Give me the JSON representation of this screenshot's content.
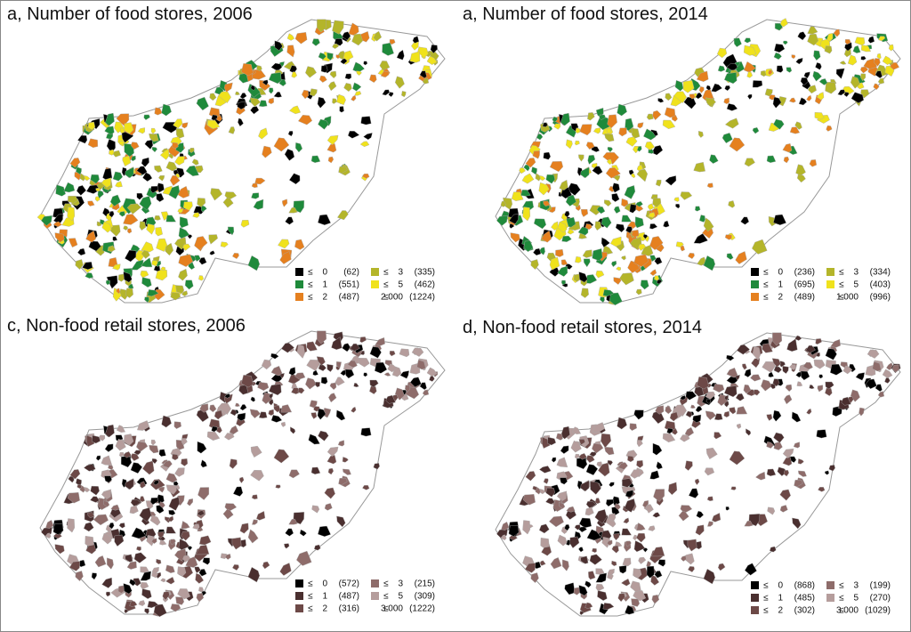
{
  "panels": [
    {
      "title": "a, Number of food stores, 2006",
      "legend": [
        {
          "symbol": "≤",
          "threshold": "0",
          "count": "(62)",
          "color": "#000000"
        },
        {
          "symbol": "≤",
          "threshold": "1",
          "count": "(551)",
          "color": "#1f8a3b"
        },
        {
          "symbol": "≤",
          "threshold": "2",
          "count": "(487)",
          "color": "#e5801f"
        },
        {
          "symbol": "≤",
          "threshold": "3",
          "count": "(335)",
          "color": "#b4b52a"
        },
        {
          "symbol": "≤",
          "threshold": "5",
          "count": "(462)",
          "color": "#f0e21c"
        },
        {
          "symbol": "≤",
          "threshold": "2 000",
          "count": "(1224)"
        }
      ]
    },
    {
      "title": "a, Number of food stores, 2014",
      "legend": [
        {
          "symbol": "≤",
          "threshold": "0",
          "count": "(236)",
          "color": "#000000"
        },
        {
          "symbol": "≤",
          "threshold": "1",
          "count": "(695)",
          "color": "#1f8a3b"
        },
        {
          "symbol": "≤",
          "threshold": "2",
          "count": "(489)",
          "color": "#e5801f"
        },
        {
          "symbol": "≤",
          "threshold": "3",
          "count": "(334)",
          "color": "#b4b52a"
        },
        {
          "symbol": "≤",
          "threshold": "5",
          "count": "(403)",
          "color": "#f0e21c"
        },
        {
          "symbol": "≤",
          "threshold": "1 000",
          "count": "(996)"
        }
      ]
    },
    {
      "title": "c, Non-food retail stores, 2006",
      "legend": [
        {
          "symbol": "≤",
          "threshold": "0",
          "count": "(572)",
          "color": "#000000"
        },
        {
          "symbol": "≤",
          "threshold": "1",
          "count": "(487)",
          "color": "#4a2f2f"
        },
        {
          "symbol": "≤",
          "threshold": "2",
          "count": "(316)",
          "color": "#6d4947"
        },
        {
          "symbol": "≤",
          "threshold": "3",
          "count": "(215)",
          "color": "#8e6c6a"
        },
        {
          "symbol": "≤",
          "threshold": "5",
          "count": "(309)",
          "color": "#b59d9c"
        },
        {
          "symbol": "≤",
          "threshold": "3 000",
          "count": "(1222)"
        }
      ]
    },
    {
      "title": "d, Non-food retail stores, 2014",
      "legend": [
        {
          "symbol": "≤",
          "threshold": "0",
          "count": "(868)",
          "color": "#000000"
        },
        {
          "symbol": "≤",
          "threshold": "1",
          "count": "(485)",
          "color": "#4a2f2f"
        },
        {
          "symbol": "≤",
          "threshold": "2",
          "count": "(302)",
          "color": "#6d4947"
        },
        {
          "symbol": "≤",
          "threshold": "3",
          "count": "(199)",
          "color": "#8e6c6a"
        },
        {
          "symbol": "≤",
          "threshold": "5",
          "count": "(270)",
          "color": "#b59d9c"
        },
        {
          "symbol": "≤",
          "threshold": "3 000",
          "count": "(1029)"
        }
      ]
    }
  ]
}
